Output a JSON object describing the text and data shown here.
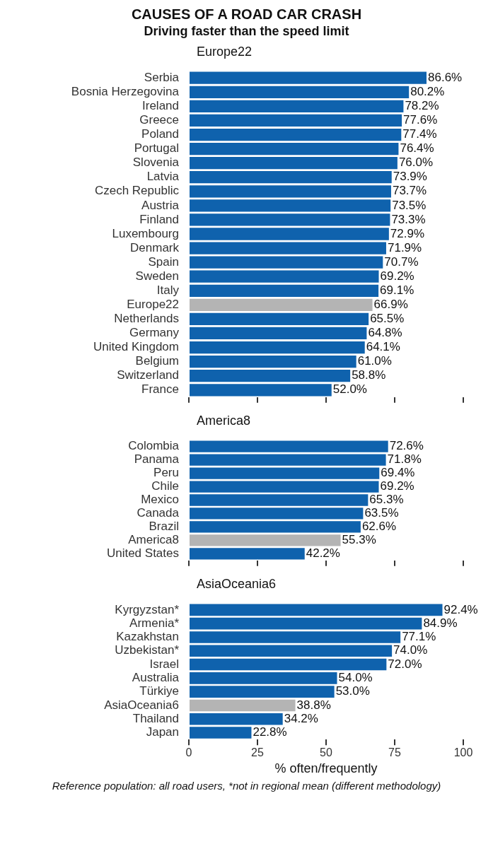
{
  "chart_data": [
    {
      "type": "other",
      "title": "CAUSES OF A ROAD CAR CRASH",
      "subtitle": "Driving faster than the speed limit"
    },
    {
      "type": "bar",
      "orientation": "horizontal",
      "title": "Europe22",
      "categories": [
        "Serbia",
        "Bosnia Herzegovina",
        "Ireland",
        "Greece",
        "Poland",
        "Portugal",
        "Slovenia",
        "Latvia",
        "Czech Republic",
        "Austria",
        "Finland",
        "Luxembourg",
        "Denmark",
        "Spain",
        "Sweden",
        "Italy",
        "Europe22",
        "Netherlands",
        "Germany",
        "United Kingdom",
        "Belgium",
        "Switzerland",
        "France"
      ],
      "values": [
        86.6,
        80.2,
        78.2,
        77.6,
        77.4,
        76.4,
        76.0,
        73.9,
        73.7,
        73.5,
        73.3,
        72.9,
        71.9,
        70.7,
        69.2,
        69.1,
        66.9,
        65.5,
        64.8,
        64.1,
        61.0,
        58.8,
        52.0
      ],
      "value_labels": [
        "86.6%",
        "80.2%",
        "78.2%",
        "77.6%",
        "77.4%",
        "76.4%",
        "76.0%",
        "73.9%",
        "73.7%",
        "73.5%",
        "73.3%",
        "72.9%",
        "71.9%",
        "70.7%",
        "69.2%",
        "69.1%",
        "66.9%",
        "65.5%",
        "64.8%",
        "64.1%",
        "61.0%",
        "58.8%",
        "52.0%"
      ],
      "colors": [
        "#0f62ad",
        "#0f62ad",
        "#0f62ad",
        "#0f62ad",
        "#0f62ad",
        "#0f62ad",
        "#0f62ad",
        "#0f62ad",
        "#0f62ad",
        "#0f62ad",
        "#0f62ad",
        "#0f62ad",
        "#0f62ad",
        "#0f62ad",
        "#0f62ad",
        "#0f62ad",
        "#b4b4b4",
        "#0f62ad",
        "#0f62ad",
        "#0f62ad",
        "#0f62ad",
        "#0f62ad",
        "#0f62ad"
      ],
      "xlim": [
        0,
        100
      ],
      "xticks": [
        0,
        25,
        50,
        75,
        100
      ],
      "tick_labels": "y",
      "grid": false
    },
    {
      "type": "bar",
      "orientation": "horizontal",
      "title": "America8",
      "categories": [
        "Colombia",
        "Panama",
        "Peru",
        "Chile",
        "Mexico",
        "Canada",
        "Brazil",
        "America8",
        "United States"
      ],
      "values": [
        72.6,
        71.8,
        69.4,
        69.2,
        65.3,
        63.5,
        62.6,
        55.3,
        42.2
      ],
      "value_labels": [
        "72.6%",
        "71.8%",
        "69.4%",
        "69.2%",
        "65.3%",
        "63.5%",
        "62.6%",
        "55.3%",
        "42.2%"
      ],
      "colors": [
        "#0f62ad",
        "#0f62ad",
        "#0f62ad",
        "#0f62ad",
        "#0f62ad",
        "#0f62ad",
        "#0f62ad",
        "#b4b4b4",
        "#0f62ad"
      ],
      "xlim": [
        0,
        100
      ],
      "xticks": [
        0,
        25,
        50,
        75,
        100
      ],
      "tick_labels": "y",
      "grid": false
    },
    {
      "type": "bar",
      "orientation": "horizontal",
      "title": "AsiaOceania6",
      "categories": [
        "Kyrgyzstan*",
        "Armenia*",
        "Kazakhstan",
        "Uzbekistan*",
        "Israel",
        "Australia",
        "Türkiye",
        "AsiaOceania6",
        "Thailand",
        "Japan"
      ],
      "values": [
        92.4,
        84.9,
        77.1,
        74.0,
        72.0,
        54.0,
        53.0,
        38.8,
        34.2,
        22.8
      ],
      "value_labels": [
        "92.4%",
        "84.9%",
        "77.1%",
        "74.0%",
        "72.0%",
        "54.0%",
        "53.0%",
        "38.8%",
        "34.2%",
        "22.8%"
      ],
      "colors": [
        "#0f62ad",
        "#0f62ad",
        "#0f62ad",
        "#0f62ad",
        "#0f62ad",
        "#0f62ad",
        "#0f62ad",
        "#b4b4b4",
        "#0f62ad",
        "#0f62ad"
      ],
      "xlim": [
        0,
        100
      ],
      "xticks": [
        0,
        25,
        50,
        75,
        100
      ],
      "xlabel": "% often/frequently",
      "grid": false,
      "annotations": [
        "Reference population: all road users, *not in regional mean (different methodology)"
      ]
    }
  ]
}
